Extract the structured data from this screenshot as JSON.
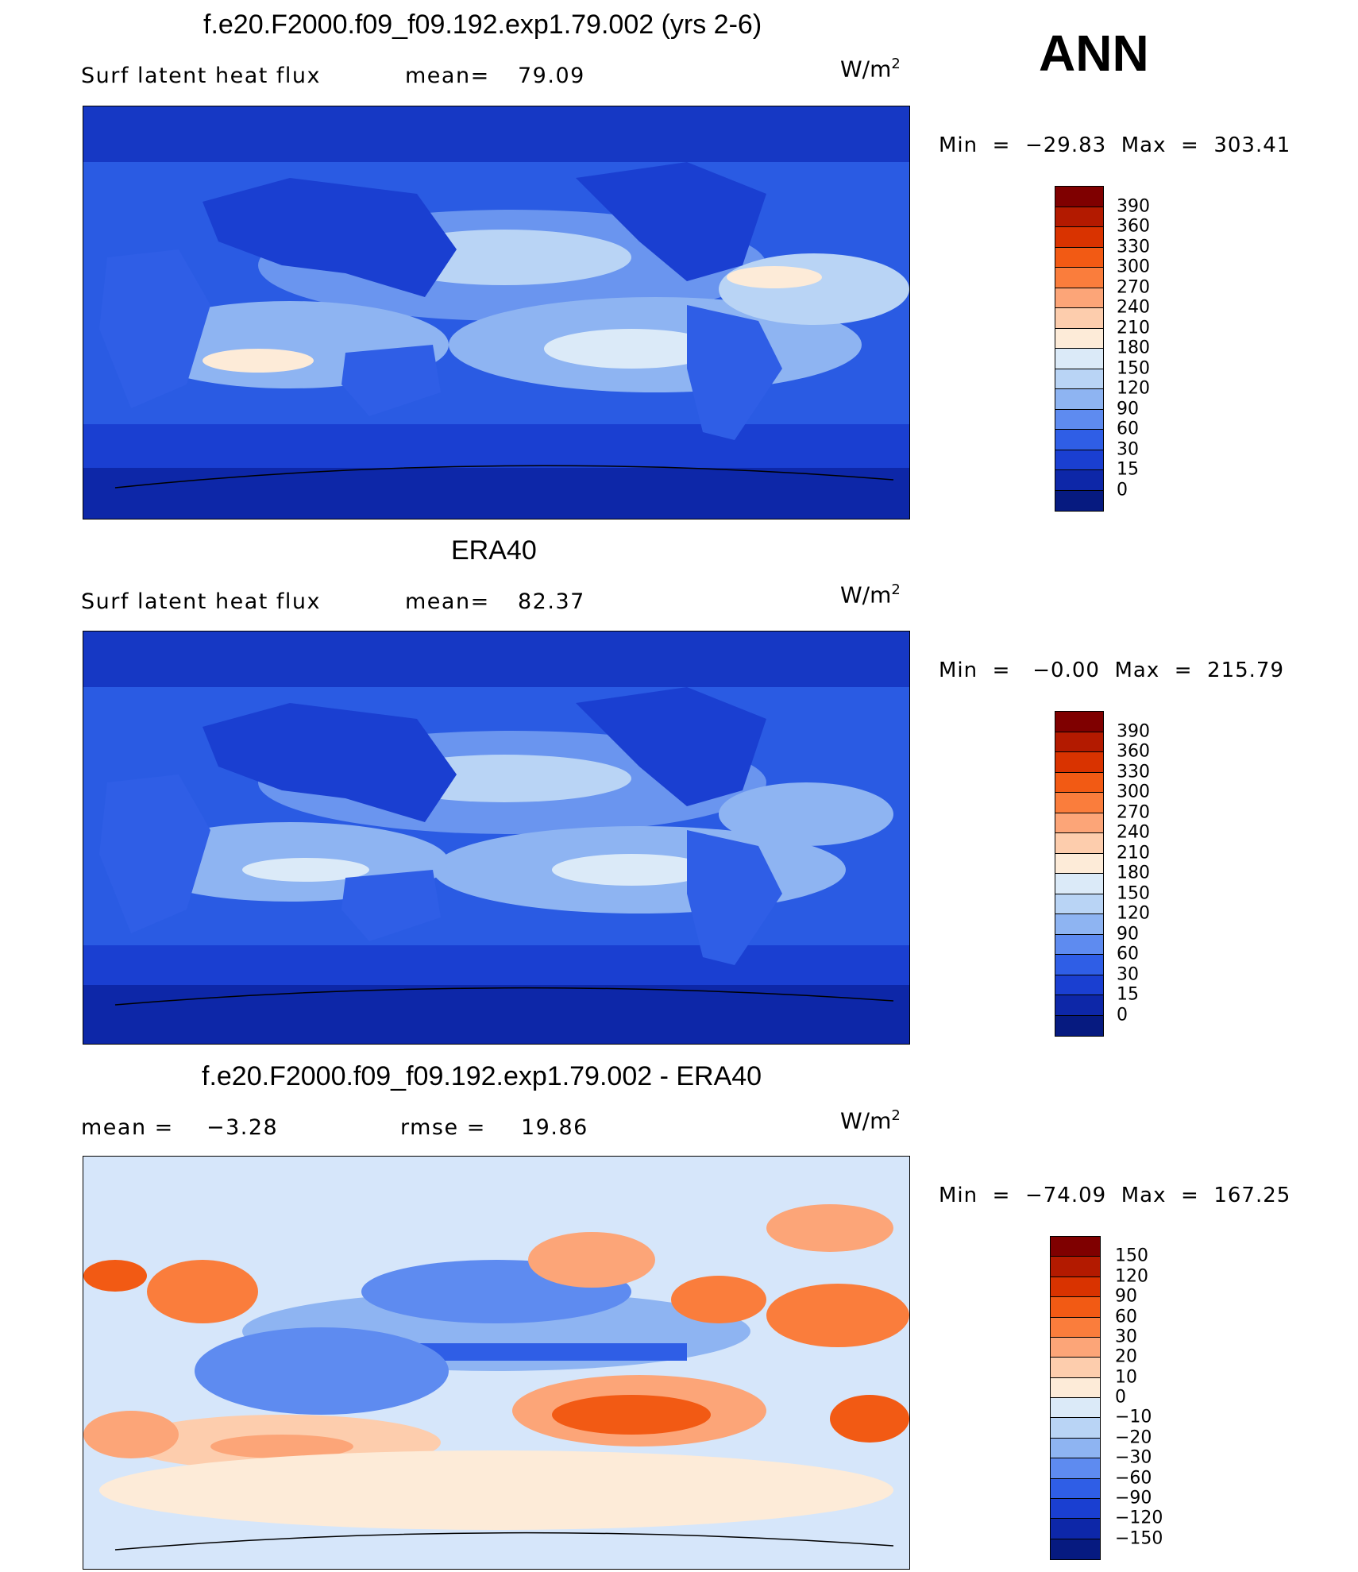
{
  "panels": [
    {
      "id": "model",
      "title": "f.e20.F2000.f09_f09.192.exp1.79.002 (yrs 2-6)",
      "left_label": "Surf latent heat flux",
      "stat1": "mean=",
      "stat1_value": "79.09",
      "stat2": "",
      "stat2_value": "",
      "unit": "W/m",
      "unit_sup": "2",
      "minmax": "Min  =  −29.83  Max  =  303.41",
      "colorbar": {
        "labels": [
          "390",
          "360",
          "330",
          "300",
          "270",
          "240",
          "210",
          "180",
          "150",
          "120",
          "90",
          "60",
          "30",
          "15",
          "0"
        ],
        "colors": [
          "#7f0000",
          "#b31a00",
          "#d93300",
          "#f25a14",
          "#fa7d3c",
          "#fca578",
          "#fdcdad",
          "#fdebd8",
          "#dbeaf8",
          "#b9d4f5",
          "#8eb4f2",
          "#5e8bf0",
          "#2f5ee6",
          "#1a3fd1",
          "#0d27a8",
          "#061a80"
        ]
      },
      "map_fill": "#2a5be3"
    },
    {
      "id": "obs",
      "title": "ERA40",
      "left_label": "Surf latent heat flux",
      "stat1": "mean=",
      "stat1_value": "82.37",
      "stat2": "",
      "stat2_value": "",
      "unit": "W/m",
      "unit_sup": "2",
      "minmax": "Min  =   −0.00  Max  =  215.79",
      "colorbar": {
        "labels": [
          "390",
          "360",
          "330",
          "300",
          "270",
          "240",
          "210",
          "180",
          "150",
          "120",
          "90",
          "60",
          "30",
          "15",
          "0"
        ],
        "colors": [
          "#7f0000",
          "#b31a00",
          "#d93300",
          "#f25a14",
          "#fa7d3c",
          "#fca578",
          "#fdcdad",
          "#fdebd8",
          "#dbeaf8",
          "#b9d4f5",
          "#8eb4f2",
          "#5e8bf0",
          "#2f5ee6",
          "#1a3fd1",
          "#0d27a8",
          "#061a80"
        ]
      },
      "map_fill": "#2a5be3"
    },
    {
      "id": "diff",
      "title": "f.e20.F2000.f09_f09.192.exp1.79.002 - ERA40",
      "left_label": "mean =",
      "stat1": "",
      "stat1_value": "−3.28",
      "stat2": "rmse =",
      "stat2_value": "19.86",
      "unit": "W/m",
      "unit_sup": "2",
      "minmax": "Min  =  −74.09  Max  =  167.25",
      "colorbar": {
        "labels": [
          "150",
          "120",
          "90",
          "60",
          "30",
          "20",
          "10",
          "0",
          "−10",
          "−20",
          "−30",
          "−60",
          "−90",
          "−120",
          "−150"
        ],
        "colors": [
          "#7f0000",
          "#b31a00",
          "#d93300",
          "#f25a14",
          "#fa7d3c",
          "#fca578",
          "#fdcdad",
          "#fdebd8",
          "#dbeaf8",
          "#b9d4f5",
          "#8eb4f2",
          "#5e8bf0",
          "#2f5ee6",
          "#1a3fd1",
          "#0d27a8",
          "#061a80"
        ]
      },
      "map_fill": "#d6e6fa"
    }
  ],
  "season": "ANN"
}
